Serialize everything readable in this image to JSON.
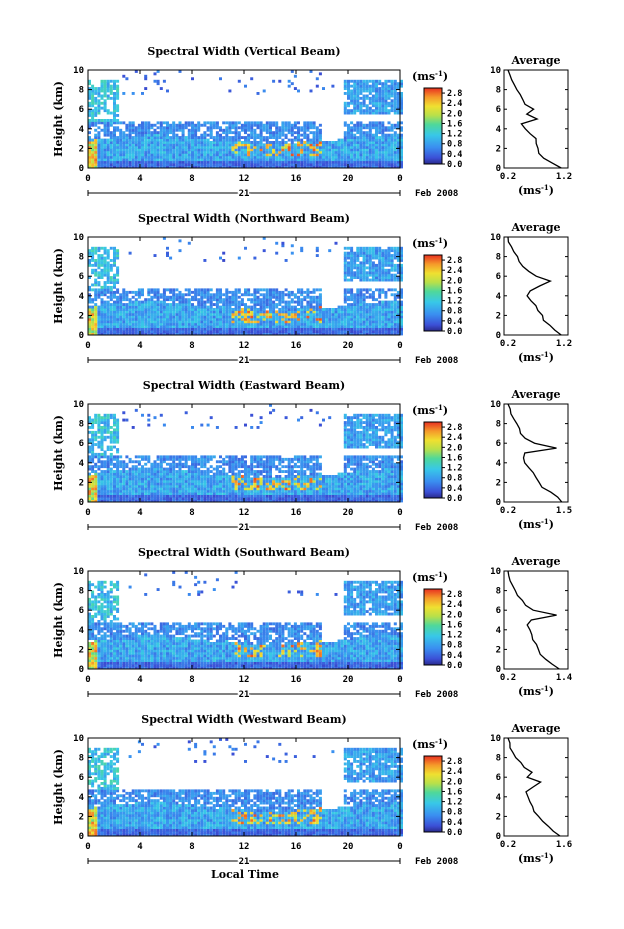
{
  "chart_data": {
    "type": "heatmap",
    "xlabel": "Local Time",
    "date_label": "21",
    "date_suffix": "Feb 2008",
    "x_ticks": [
      "0",
      "4",
      "8",
      "12",
      "16",
      "20",
      "0"
    ],
    "xlim": [
      0,
      24
    ],
    "ylabel": "Height (km)",
    "y_ticks": [
      "0",
      "2",
      "4",
      "6",
      "8",
      "10"
    ],
    "ylim": [
      0,
      10
    ],
    "colorbar": {
      "unit": "(ms",
      "unit_exp": "-1",
      "unit_close": ")",
      "ticks": [
        "2.8",
        "2.4",
        "2.0",
        "1.6",
        "1.2",
        "0.8",
        "0.4",
        "0.0"
      ],
      "range": [
        0,
        3.0
      ]
    },
    "average": {
      "title": "Average",
      "xlabel": "(ms",
      "xlabel_exp": "-1",
      "xlabel_close": ")",
      "y_ticks": [
        "0",
        "2",
        "4",
        "6",
        "8",
        "10"
      ],
      "ylim": [
        0,
        10
      ]
    },
    "panels": [
      {
        "title": "Spectral Width (Vertical Beam)",
        "avg_xticks": [
          "0.2",
          "1.2"
        ],
        "avg_xlim": [
          0.2,
          1.2
        ],
        "avg_profile": {
          "height": [
            0,
            0.5,
            1,
            1.5,
            2,
            2.5,
            3,
            3.5,
            4,
            4.5,
            5,
            5.5,
            6,
            6.5,
            7,
            7.5,
            8,
            8.5,
            9,
            9.5,
            10
          ],
          "value": [
            1.15,
            1.0,
            0.85,
            0.75,
            0.72,
            0.7,
            0.68,
            0.6,
            0.5,
            0.45,
            0.7,
            0.55,
            0.65,
            0.5,
            0.45,
            0.4,
            0.35,
            0.3,
            0.25,
            0.22,
            0.2
          ]
        }
      },
      {
        "title": "Spectral Width (Northward Beam)",
        "avg_xticks": [
          "0.2",
          "1.2"
        ],
        "avg_xlim": [
          0.2,
          1.2
        ],
        "avg_profile": {
          "height": [
            0,
            0.5,
            1,
            1.5,
            2,
            2.5,
            3,
            3.5,
            4,
            4.5,
            5,
            5.5,
            6,
            6.5,
            7,
            7.5,
            8,
            8.5,
            9,
            9.5,
            10
          ],
          "value": [
            1.15,
            1.05,
            0.95,
            0.85,
            0.8,
            0.72,
            0.68,
            0.6,
            0.55,
            0.6,
            0.75,
            0.95,
            0.7,
            0.55,
            0.45,
            0.4,
            0.35,
            0.3,
            0.25,
            0.22,
            0.2
          ]
        }
      },
      {
        "title": "Spectral Width (Eastward Beam)",
        "avg_xticks": [
          "0.2",
          "1.5"
        ],
        "avg_xlim": [
          0.2,
          1.5
        ],
        "avg_profile": {
          "height": [
            0,
            0.5,
            1,
            1.5,
            2,
            2.5,
            3,
            3.5,
            4,
            4.5,
            5,
            5.5,
            6,
            6.5,
            7,
            7.5,
            8,
            8.5,
            9,
            9.5,
            10
          ],
          "value": [
            1.45,
            1.35,
            1.2,
            1.0,
            0.92,
            0.85,
            0.8,
            0.7,
            0.6,
            0.55,
            0.6,
            1.3,
            0.8,
            0.6,
            0.5,
            0.45,
            0.38,
            0.32,
            0.27,
            0.23,
            0.2
          ]
        }
      },
      {
        "title": "Spectral Width (Southward Beam)",
        "avg_xticks": [
          "0.2",
          "1.4"
        ],
        "avg_xlim": [
          0.2,
          1.4
        ],
        "avg_profile": {
          "height": [
            0,
            0.5,
            1,
            1.5,
            2,
            2.5,
            3,
            3.5,
            4,
            4.5,
            5,
            5.5,
            6,
            6.5,
            7,
            7.5,
            8,
            8.5,
            9,
            9.5,
            10
          ],
          "value": [
            1.3,
            1.15,
            1.0,
            0.9,
            0.85,
            0.8,
            0.75,
            0.7,
            0.65,
            0.6,
            0.7,
            1.25,
            0.75,
            0.6,
            0.5,
            0.42,
            0.35,
            0.3,
            0.25,
            0.22,
            0.2
          ]
        }
      },
      {
        "title": "Spectral Width (Westward Beam)",
        "avg_xticks": [
          "0.2",
          "1.6"
        ],
        "avg_xlim": [
          0.2,
          1.6
        ],
        "avg_profile": {
          "height": [
            0,
            0.5,
            1,
            1.5,
            2,
            2.5,
            3,
            3.5,
            4,
            4.5,
            5,
            5.5,
            6,
            6.5,
            7,
            7.5,
            8,
            8.5,
            9,
            9.5,
            10
          ],
          "value": [
            1.5,
            1.35,
            1.2,
            1.05,
            0.95,
            0.85,
            0.8,
            0.75,
            0.7,
            0.65,
            0.85,
            1.0,
            0.7,
            0.8,
            0.6,
            0.5,
            0.4,
            0.33,
            0.27,
            0.23,
            0.2
          ]
        }
      }
    ]
  }
}
